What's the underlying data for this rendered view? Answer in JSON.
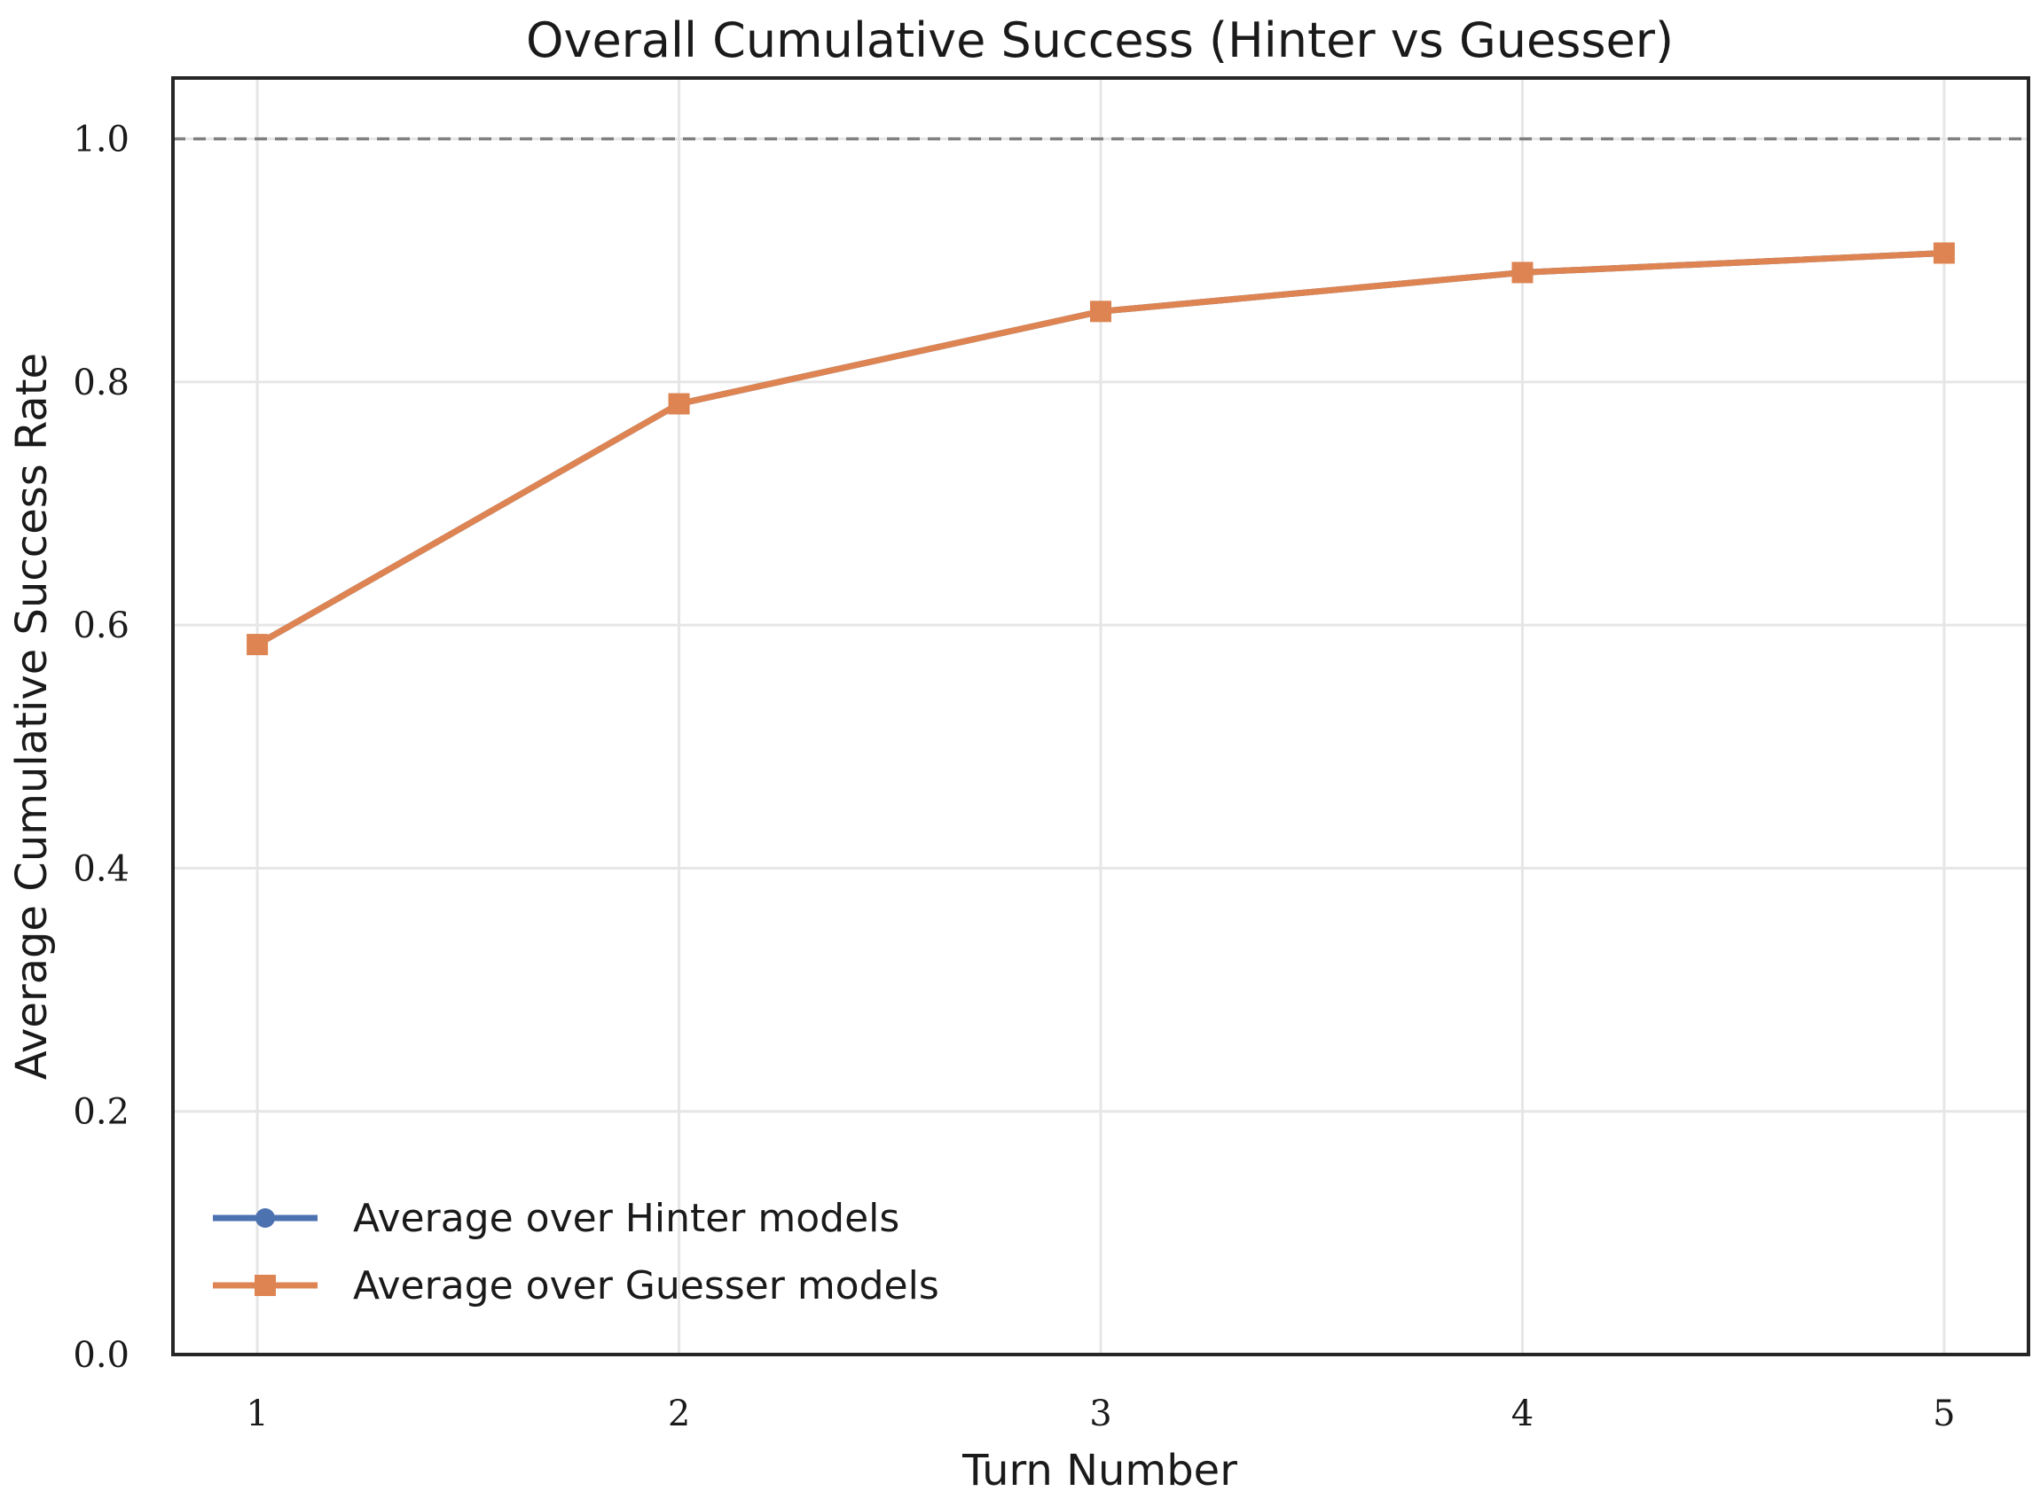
{
  "chart_data": {
    "type": "line",
    "title": "Overall Cumulative Success (Hinter vs Guesser)",
    "xlabel": "Turn Number",
    "ylabel": "Average Cumulative Success Rate",
    "x": [
      1,
      2,
      3,
      4,
      5
    ],
    "x_tick_labels": [
      "1",
      "2",
      "3",
      "4",
      "5"
    ],
    "y_tick_labels": [
      "0.0",
      "0.2",
      "0.4",
      "0.6",
      "0.8",
      "1.0"
    ],
    "y_ticks": [
      0.0,
      0.2,
      0.4,
      0.6,
      0.8,
      1.0
    ],
    "xlim": [
      0.8,
      5.2
    ],
    "ylim": [
      0.0,
      1.05
    ],
    "grid": true,
    "reference_line": {
      "y": 1.0,
      "style": "dashed",
      "color": "#808080"
    },
    "legend_position": "lower-left",
    "series": [
      {
        "name": "Average over Hinter models",
        "values": [
          0.584,
          0.782,
          0.858,
          0.89,
          0.906
        ],
        "color": "#4c72b0",
        "marker": "circle"
      },
      {
        "name": "Average over Guesser models",
        "values": [
          0.584,
          0.782,
          0.858,
          0.89,
          0.906
        ],
        "color": "#dd8452",
        "marker": "square"
      }
    ]
  }
}
